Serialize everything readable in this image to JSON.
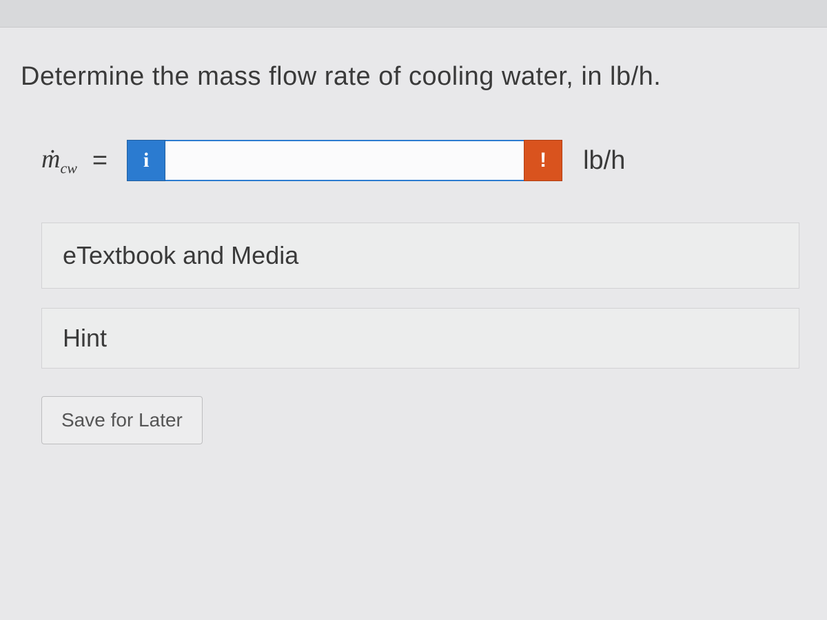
{
  "question": {
    "prompt": "Determine the mass flow rate of cooling water, in lb/h."
  },
  "answer": {
    "variable_base": "ṁ",
    "variable_sub": "cw",
    "equals": "=",
    "info_icon": "i",
    "input_value": "",
    "input_placeholder": "",
    "error_icon": "!",
    "unit": "lb/h"
  },
  "resources": {
    "etextbook_label": "eTextbook and Media",
    "hint_label": "Hint"
  },
  "actions": {
    "save_label": "Save for Later"
  },
  "colors": {
    "info_bg": "#2b7bd0",
    "error_bg": "#d9531e",
    "page_bg": "#e8e8ea",
    "text": "#3a3a3a",
    "box_border": "#d2d2d4"
  }
}
